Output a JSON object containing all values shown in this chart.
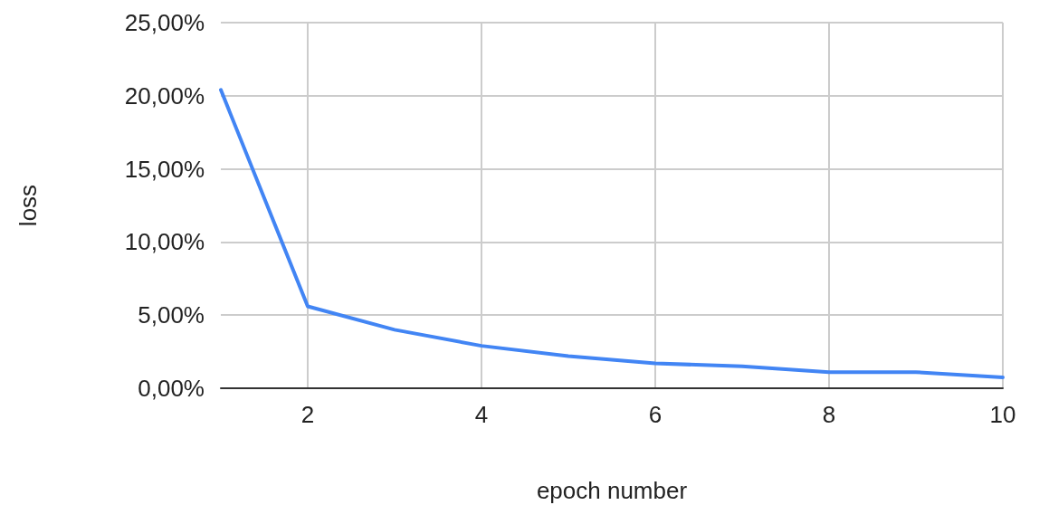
{
  "chart_data": {
    "type": "line",
    "xlabel": "epoch number",
    "ylabel": "loss",
    "x": [
      1,
      2,
      3,
      4,
      5,
      6,
      7,
      8,
      9,
      10
    ],
    "series": [
      {
        "color": "#4285f4",
        "values": [
          20.4,
          5.6,
          4.0,
          2.9,
          2.2,
          1.7,
          1.5,
          1.1,
          1.1,
          0.75
        ]
      }
    ],
    "xlim": [
      1,
      10
    ],
    "xticks": [
      2,
      4,
      6,
      8,
      10
    ],
    "ylim": [
      0,
      25
    ],
    "yticks": [
      {
        "value": 0,
        "label": "0,00%"
      },
      {
        "value": 5,
        "label": "5,00%"
      },
      {
        "value": 10,
        "label": "10,00%"
      },
      {
        "value": 15,
        "label": "15,00%"
      },
      {
        "value": 20,
        "label": "20,00%"
      },
      {
        "value": 25,
        "label": "25,00%"
      }
    ],
    "grid": true,
    "marker": "none",
    "line_style": "solid"
  }
}
